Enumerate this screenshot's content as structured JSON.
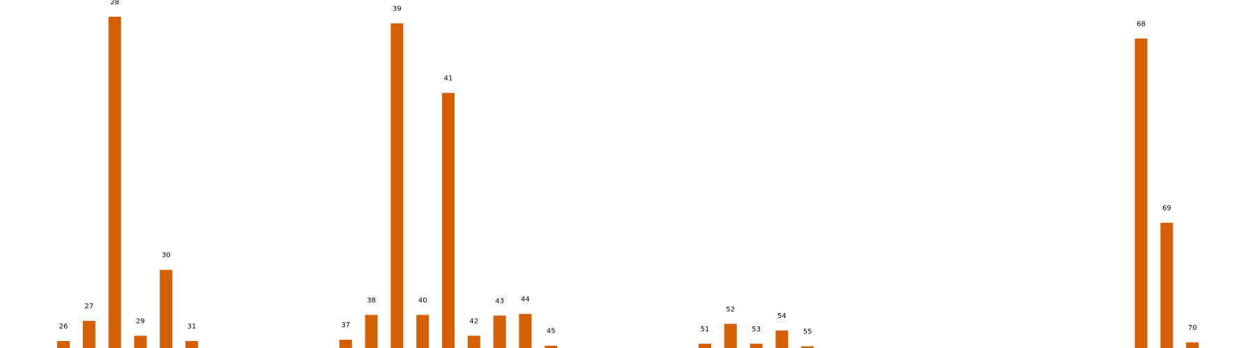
{
  "chart_data": {
    "type": "bar",
    "x": [
      26,
      27,
      28,
      29,
      30,
      31,
      37,
      38,
      39,
      40,
      41,
      42,
      43,
      44,
      45,
      51,
      52,
      53,
      54,
      55,
      68,
      69,
      70
    ],
    "values": [
      0.021,
      0.082,
      1.0,
      0.037,
      0.236,
      0.021,
      0.025,
      0.1,
      0.98,
      0.1,
      0.77,
      0.037,
      0.098,
      0.103,
      0.007,
      0.013,
      0.073,
      0.013,
      0.053,
      0.005,
      0.934,
      0.378,
      0.017
    ],
    "xlim": [
      24,
      73
    ],
    "ylim": [
      0,
      1.0
    ],
    "grid": false,
    "axes_visible": false,
    "bar_color": "#d45f05",
    "label_color": "#000000",
    "background": "#ffffff"
  }
}
